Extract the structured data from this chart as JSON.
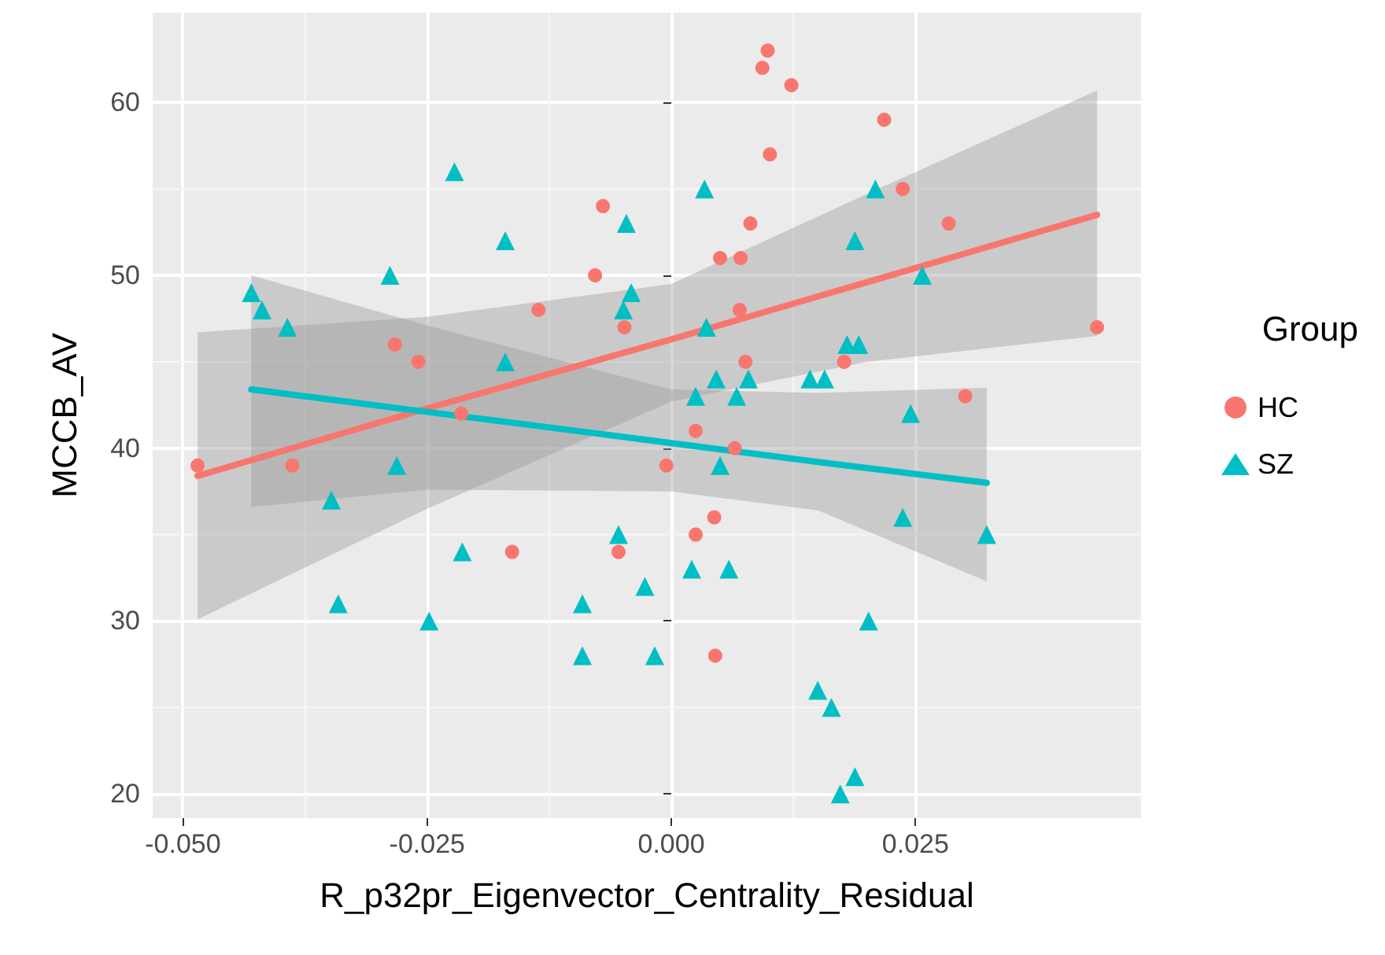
{
  "chart_data": {
    "type": "scatter",
    "xlabel": "R_p32pr_Eigenvector_Centrality_Residual",
    "ylabel": "MCCB_AV",
    "legend_title": "Group",
    "xlim": [
      -0.0531,
      0.0481
    ],
    "ylim": [
      18.6,
      65.2
    ],
    "xticks": [
      {
        "value": -0.05,
        "label": "-0.050"
      },
      {
        "value": -0.025,
        "label": "-0.025"
      },
      {
        "value": 0,
        "label": "0.000"
      },
      {
        "value": 0.025,
        "label": "0.025"
      }
    ],
    "yticks": [
      20,
      30,
      40,
      50,
      60
    ],
    "grid": true,
    "legend": "right",
    "series": [
      {
        "name": "HC",
        "color": "#f8766d",
        "marker": "circle",
        "x": [
          -0.007,
          -0.0078,
          -0.0136,
          -0.0048,
          -0.0283,
          -0.0259,
          -0.0215,
          0.00987,
          0.00933,
          0.0123,
          0.0218,
          0.0101,
          0.0237,
          0.0081,
          0.0284,
          0.005,
          0.0071,
          0.007,
          0.0436,
          0.0076,
          0.0177,
          0.0301,
          0.0025,
          0.0065,
          -0.0005,
          0.0044,
          0.0025,
          0.0045,
          -0.0485,
          -0.0388,
          -0.0163,
          -0.0054
        ],
        "values": [
          54,
          50,
          48,
          47,
          46,
          45,
          42,
          63,
          62,
          61,
          59,
          57,
          55,
          53,
          53,
          51,
          51,
          48,
          47,
          45,
          45,
          43,
          41,
          40,
          39,
          36,
          35,
          28,
          39,
          39,
          34,
          34
        ]
      },
      {
        "name": "SZ",
        "color": "#00bfc4",
        "marker": "triangle",
        "x": [
          -0.0222,
          -0.0046,
          -0.017,
          -0.0288,
          -0.043,
          -0.0041,
          -0.0419,
          -0.0049,
          -0.0393,
          -0.017,
          0.0034,
          0.0209,
          0.0188,
          0.0257,
          0.0036,
          0.018,
          0.0192,
          0.0046,
          0.0079,
          0.0142,
          0.0157,
          0.0025,
          0.0067,
          0.0245,
          0.005,
          0.0237,
          0.0323,
          0.0021,
          0.0059,
          -0.0027,
          0.0202,
          -0.0017,
          0.015,
          0.0164,
          0.0188,
          0.0173,
          -0.0281,
          -0.0348,
          -0.0054,
          -0.0214,
          -0.0341,
          -0.0091,
          -0.0248,
          -0.0091
        ],
        "values": [
          56,
          53,
          52,
          50,
          49,
          49,
          48,
          48,
          47,
          45,
          55,
          55,
          52,
          50,
          47,
          46,
          46,
          44,
          44,
          44,
          44,
          43,
          43,
          42,
          39,
          36,
          35,
          33,
          33,
          32,
          30,
          28,
          26,
          25,
          21,
          20,
          39,
          37,
          35,
          34,
          31,
          31,
          30,
          28
        ]
      },
      {
        "type": "line",
        "color": "#f8766d",
        "marker": "none",
        "x": [
          -0.0485,
          -0.025,
          0,
          0.02,
          0.0436
        ],
        "values": [
          38.4,
          42.3,
          46.3,
          49.6,
          53.5
        ],
        "lower": [
          30.1,
          36.5,
          42.7,
          45.0,
          46.5
        ],
        "upper": [
          46.7,
          47.6,
          49.5,
          54.7,
          60.7
        ]
      },
      {
        "type": "line",
        "color": "#00bfc4",
        "marker": "none",
        "x": [
          -0.043,
          -0.025,
          0,
          0.015,
          0.0323
        ],
        "values": [
          43.4,
          42.1,
          40.3,
          39.2,
          38.0
        ],
        "lower": [
          36.6,
          37.6,
          37.5,
          36.4,
          32.3
        ],
        "upper": [
          50.0,
          47.1,
          43.4,
          43.2,
          43.5
        ]
      }
    ]
  }
}
